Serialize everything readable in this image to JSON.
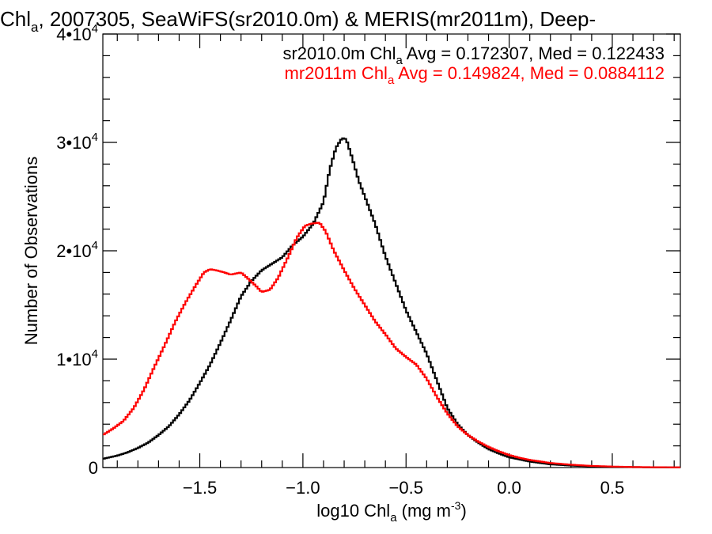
{
  "chart_data": {
    "type": "line",
    "title_pre": "Chl",
    "title_sub": "a",
    "title_post": ", 2007305, SeaWiFS(sr2010.0m) & MERIS(mr2011m), Deep-",
    "xlabel_pre": "log10 Chl",
    "xlabel_sub": "a",
    "xlabel_mid": " (mg m",
    "xlabel_sup": "-3",
    "xlabel_post": ")",
    "ylabel": "Number of Observations",
    "xlim": [
      -1.97,
      0.83
    ],
    "ylim": [
      0,
      40000
    ],
    "x_ticks": [
      {
        "value": -1.5,
        "label": "−1.5"
      },
      {
        "value": -1.0,
        "label": "−1.0"
      },
      {
        "value": -0.5,
        "label": "−0.5"
      },
      {
        "value": 0.0,
        "label": "0.0"
      },
      {
        "value": 0.5,
        "label": "0.5"
      }
    ],
    "y_ticks": [
      {
        "value": 0,
        "mant": "0",
        "exp": ""
      },
      {
        "value": 10000,
        "mant": "1•10",
        "exp": "4"
      },
      {
        "value": 20000,
        "mant": "2•10",
        "exp": "4"
      },
      {
        "value": 30000,
        "mant": "3•10",
        "exp": "4"
      },
      {
        "value": 40000,
        "mant": "4•10",
        "exp": "4"
      }
    ],
    "grid": false,
    "legend": "top-right",
    "series": [
      {
        "name": "sr2010.0m",
        "color": "#000000",
        "label_pre": "sr2010.0m Chl",
        "label_sub": "a",
        "label_post": " Avg = 0.172307, Med = 0.122433",
        "points": [
          [
            -1.97,
            800
          ],
          [
            -1.9,
            1100
          ],
          [
            -1.85,
            1400
          ],
          [
            -1.8,
            1800
          ],
          [
            -1.75,
            2300
          ],
          [
            -1.7,
            3000
          ],
          [
            -1.65,
            3800
          ],
          [
            -1.6,
            4900
          ],
          [
            -1.55,
            6200
          ],
          [
            -1.5,
            7800
          ],
          [
            -1.45,
            9500
          ],
          [
            -1.4,
            11500
          ],
          [
            -1.35,
            13600
          ],
          [
            -1.3,
            15800
          ],
          [
            -1.25,
            17200
          ],
          [
            -1.2,
            18200
          ],
          [
            -1.15,
            18800
          ],
          [
            -1.1,
            19400
          ],
          [
            -1.05,
            20500
          ],
          [
            -1.0,
            21300
          ],
          [
            -0.95,
            22500
          ],
          [
            -0.9,
            24500
          ],
          [
            -0.87,
            27500
          ],
          [
            -0.84,
            29500
          ],
          [
            -0.81,
            30400
          ],
          [
            -0.79,
            30300
          ],
          [
            -0.76,
            28500
          ],
          [
            -0.73,
            26500
          ],
          [
            -0.7,
            25000
          ],
          [
            -0.65,
            22500
          ],
          [
            -0.6,
            19500
          ],
          [
            -0.55,
            17000
          ],
          [
            -0.5,
            14500
          ],
          [
            -0.45,
            12500
          ],
          [
            -0.4,
            10500
          ],
          [
            -0.35,
            8000
          ],
          [
            -0.3,
            5500
          ],
          [
            -0.25,
            4000
          ],
          [
            -0.2,
            3000
          ],
          [
            -0.15,
            2300
          ],
          [
            -0.1,
            1700
          ],
          [
            -0.05,
            1300
          ],
          [
            0.0,
            950
          ],
          [
            0.05,
            750
          ],
          [
            0.1,
            550
          ],
          [
            0.2,
            300
          ],
          [
            0.3,
            180
          ],
          [
            0.4,
            110
          ],
          [
            0.5,
            70
          ],
          [
            0.6,
            40
          ],
          [
            0.7,
            20
          ],
          [
            0.83,
            10
          ]
        ]
      },
      {
        "name": "mr2011m",
        "color": "#ff0000",
        "label_pre": "mr2011m Chl",
        "label_sub": "a",
        "label_post": " Avg = 0.149824, Med = 0.0884112",
        "points": [
          [
            -1.97,
            3000
          ],
          [
            -1.92,
            3600
          ],
          [
            -1.87,
            4300
          ],
          [
            -1.82,
            5500
          ],
          [
            -1.77,
            7200
          ],
          [
            -1.72,
            9300
          ],
          [
            -1.67,
            11300
          ],
          [
            -1.62,
            13400
          ],
          [
            -1.57,
            15200
          ],
          [
            -1.52,
            16800
          ],
          [
            -1.48,
            18000
          ],
          [
            -1.45,
            18300
          ],
          [
            -1.42,
            18200
          ],
          [
            -1.38,
            18000
          ],
          [
            -1.35,
            17800
          ],
          [
            -1.3,
            18000
          ],
          [
            -1.27,
            17500
          ],
          [
            -1.23,
            16800
          ],
          [
            -1.2,
            16200
          ],
          [
            -1.16,
            16400
          ],
          [
            -1.12,
            17500
          ],
          [
            -1.07,
            19500
          ],
          [
            -1.03,
            21200
          ],
          [
            -0.99,
            22300
          ],
          [
            -0.96,
            22500
          ],
          [
            -0.92,
            22600
          ],
          [
            -0.89,
            21800
          ],
          [
            -0.85,
            20000
          ],
          [
            -0.8,
            18200
          ],
          [
            -0.75,
            16500
          ],
          [
            -0.7,
            15000
          ],
          [
            -0.65,
            13500
          ],
          [
            -0.6,
            12300
          ],
          [
            -0.55,
            11000
          ],
          [
            -0.5,
            10200
          ],
          [
            -0.45,
            9500
          ],
          [
            -0.4,
            8200
          ],
          [
            -0.35,
            6500
          ],
          [
            -0.3,
            5000
          ],
          [
            -0.25,
            3800
          ],
          [
            -0.2,
            3000
          ],
          [
            -0.15,
            2400
          ],
          [
            -0.1,
            1900
          ],
          [
            -0.05,
            1500
          ],
          [
            0.0,
            1150
          ],
          [
            0.05,
            900
          ],
          [
            0.1,
            700
          ],
          [
            0.2,
            420
          ],
          [
            0.3,
            260
          ],
          [
            0.4,
            150
          ],
          [
            0.5,
            90
          ],
          [
            0.6,
            50
          ],
          [
            0.7,
            30
          ],
          [
            0.83,
            15
          ]
        ]
      }
    ]
  }
}
